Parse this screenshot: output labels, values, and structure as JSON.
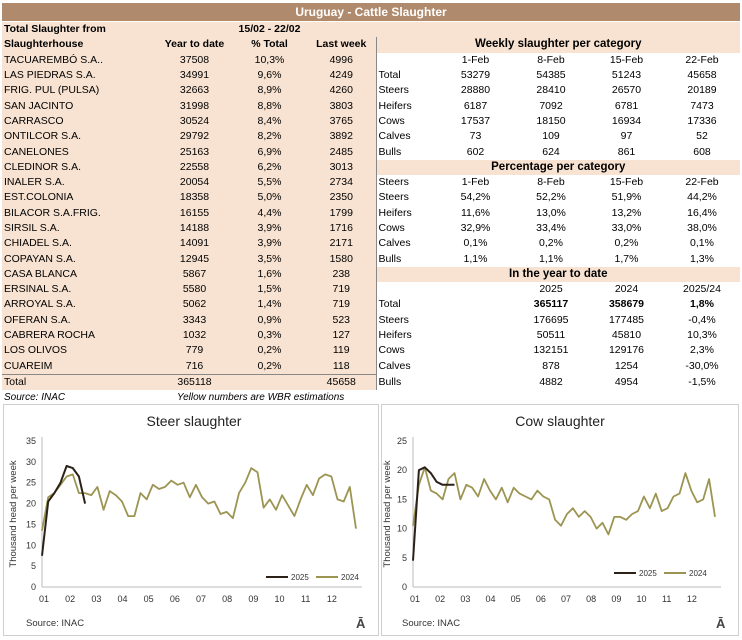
{
  "title": "Uruguay - Cattle Slaughter",
  "header": {
    "label": "Total Slaughter from",
    "period": "15/02 - 22/02"
  },
  "left_table": {
    "columns": [
      "Slaughterhouse",
      "Year to date",
      "% Total",
      "Last week"
    ],
    "rows": [
      [
        "TACUAREMBÓ S.A..",
        "37508",
        "10,3%",
        "4996"
      ],
      [
        "LAS PIEDRAS S.A.",
        "34991",
        "9,6%",
        "4249"
      ],
      [
        "FRIG. PUL (PULSA)",
        "32663",
        "8,9%",
        "4260"
      ],
      [
        "SAN JACINTO",
        "31998",
        "8,8%",
        "3803"
      ],
      [
        "CARRASCO",
        "30524",
        "8,4%",
        "3765"
      ],
      [
        "ONTILCOR S.A.",
        "29792",
        "8,2%",
        "3892"
      ],
      [
        "CANELONES",
        "25163",
        "6,9%",
        "2485"
      ],
      [
        "CLEDINOR S.A.",
        "22558",
        "6,2%",
        "3013"
      ],
      [
        "INALER S.A.",
        "20054",
        "5,5%",
        "2734"
      ],
      [
        "EST.COLONIA",
        "18358",
        "5,0%",
        "2350"
      ],
      [
        "BILACOR S.A.FRIG.",
        "16155",
        "4,4%",
        "1799"
      ],
      [
        "SIRSIL S.A.",
        "14188",
        "3,9%",
        "1716"
      ],
      [
        "CHIADEL S.A.",
        "14091",
        "3,9%",
        "2171"
      ],
      [
        "COPAYAN S.A.",
        "12945",
        "3,5%",
        "1580"
      ],
      [
        "CASA BLANCA",
        "5867",
        "1,6%",
        "238"
      ],
      [
        "ERSINAL S.A.",
        "5580",
        "1,5%",
        "719"
      ],
      [
        "ARROYAL S.A.",
        "5062",
        "1,4%",
        "719"
      ],
      [
        "OFERAN S.A.",
        "3343",
        "0,9%",
        "523"
      ],
      [
        "CABRERA ROCHA",
        "1032",
        "0,3%",
        "127"
      ],
      [
        "LOS OLIVOS",
        "779",
        "0,2%",
        "119"
      ],
      [
        "CUAREIM",
        "716",
        "0,2%",
        "118"
      ]
    ],
    "total": [
      "Total",
      "365118",
      "",
      "45658"
    ]
  },
  "source_note": "Source: INAC",
  "yellow_note": "Yellow numbers are WBR estimations",
  "weekly": {
    "title": "Weekly slaughter per category",
    "dates": [
      "1-Feb",
      "8-Feb",
      "15-Feb",
      "22-Feb"
    ],
    "rows": [
      [
        "Total",
        "53279",
        "54385",
        "51243",
        "45658"
      ],
      [
        "Steers",
        "28880",
        "28410",
        "26570",
        "20189"
      ],
      [
        "Heifers",
        "6187",
        "7092",
        "6781",
        "7473"
      ],
      [
        "Cows",
        "17537",
        "18150",
        "16934",
        "17336"
      ],
      [
        "Calves",
        "73",
        "109",
        "97",
        "52"
      ],
      [
        "Bulls",
        "602",
        "624",
        "861",
        "608"
      ]
    ]
  },
  "percentage": {
    "title": "Percentage per category",
    "header_label": "Steers",
    "dates": [
      "1-Feb",
      "8-Feb",
      "15-Feb",
      "22-Feb"
    ],
    "rows": [
      [
        "Steers",
        "54,2%",
        "52,2%",
        "51,9%",
        "44,2%"
      ],
      [
        "Heifers",
        "11,6%",
        "13,0%",
        "13,2%",
        "16,4%"
      ],
      [
        "Cows",
        "32,9%",
        "33,4%",
        "33,0%",
        "38,0%"
      ],
      [
        "Calves",
        "0,1%",
        "0,2%",
        "0,2%",
        "0,1%"
      ],
      [
        "Bulls",
        "1,1%",
        "1,1%",
        "1,7%",
        "1,3%"
      ]
    ]
  },
  "ytd": {
    "title": "In the year to date",
    "columns": [
      "2025",
      "2024",
      "2025/24"
    ],
    "rows": [
      [
        "Total",
        "365117",
        "358679",
        "1,8%"
      ],
      [
        "Steers",
        "176695",
        "177485",
        "-0,4%"
      ],
      [
        "Heifers",
        "50511",
        "45810",
        "10,3%"
      ],
      [
        "Cows",
        "132151",
        "129176",
        "2,3%"
      ],
      [
        "Calves",
        "878",
        "1254",
        "-30,0%"
      ],
      [
        "Bulls",
        "4882",
        "4954",
        "-1,5%"
      ]
    ]
  },
  "colors": {
    "title_bar": "#b08a6c",
    "tan": "#f8e3d2",
    "series_2025": "#2b2118",
    "series_2024": "#9c9552"
  },
  "chart_data": [
    {
      "type": "line",
      "title": "Steer slaughter",
      "xlabel": "",
      "ylabel": "Thousand head per week",
      "ylim": [
        0,
        35
      ],
      "yticks": [
        0,
        5,
        10,
        15,
        20,
        25,
        30,
        35
      ],
      "xticks": [
        "01",
        "02",
        "03",
        "04",
        "05",
        "06",
        "07",
        "08",
        "09",
        "10",
        "11",
        "12"
      ],
      "source": "Source: INAC",
      "logo": "Ā",
      "legend_position": "bottom-right",
      "series": [
        {
          "name": "2025",
          "x": [
            1,
            2,
            3,
            4,
            5,
            6,
            7,
            8
          ],
          "values": [
            7.5,
            20.5,
            22.5,
            25,
            29,
            28.5,
            26.5,
            20
          ]
        },
        {
          "name": "2024",
          "x": [
            1,
            2,
            3,
            4,
            5,
            6,
            7,
            8,
            9,
            10,
            11,
            12,
            13,
            14,
            15,
            16,
            17,
            18,
            19,
            20,
            21,
            22,
            23,
            24,
            25,
            26,
            27,
            28,
            29,
            30,
            31,
            32,
            33,
            34,
            35,
            36,
            37,
            38,
            39,
            40,
            41,
            42,
            43,
            44,
            45,
            46,
            47,
            48,
            49,
            50,
            51,
            52
          ],
          "values": [
            13.5,
            21.5,
            22.5,
            24.5,
            26.5,
            27,
            22.5,
            22.5,
            22,
            24,
            18.5,
            23,
            22,
            20.5,
            17,
            17,
            22.5,
            21,
            24.5,
            23.5,
            24,
            25.5,
            24.5,
            25,
            21.5,
            24.5,
            21.5,
            20,
            20.5,
            17.5,
            18,
            16.5,
            22.5,
            25,
            28.5,
            27.5,
            19,
            21,
            18.5,
            22,
            19.5,
            17,
            21,
            24.5,
            22,
            26,
            27,
            26.5,
            21,
            20.5,
            24,
            14
          ]
        }
      ]
    },
    {
      "type": "line",
      "title": "Cow slaughter",
      "xlabel": "",
      "ylabel": "Thousand head per week",
      "ylim": [
        0,
        25
      ],
      "yticks": [
        0,
        5,
        10,
        15,
        20,
        25
      ],
      "xticks": [
        "01",
        "02",
        "03",
        "04",
        "05",
        "06",
        "07",
        "08",
        "09",
        "10",
        "11",
        "12"
      ],
      "source": "Source: INAC",
      "logo": "Ā",
      "legend_position": "bottom-right",
      "series": [
        {
          "name": "2025",
          "x": [
            1,
            2,
            3,
            4,
            5,
            6,
            7,
            8
          ],
          "values": [
            4.5,
            20,
            20.5,
            19.5,
            18,
            17.5,
            17.5,
            17.5
          ]
        },
        {
          "name": "2024",
          "x": [
            1,
            2,
            3,
            4,
            5,
            6,
            7,
            8,
            9,
            10,
            11,
            12,
            13,
            14,
            15,
            16,
            17,
            18,
            19,
            20,
            21,
            22,
            23,
            24,
            25,
            26,
            27,
            28,
            29,
            30,
            31,
            32,
            33,
            34,
            35,
            36,
            37,
            38,
            39,
            40,
            41,
            42,
            43,
            44,
            45,
            46,
            47,
            48,
            49,
            50,
            51,
            52
          ],
          "values": [
            10.5,
            17.5,
            20.5,
            16.5,
            16,
            15,
            18.5,
            19.5,
            15,
            17.5,
            17,
            15.5,
            18.5,
            16.5,
            15,
            17,
            14.5,
            17,
            16,
            15.5,
            15,
            16.5,
            15.5,
            15,
            11.5,
            10.5,
            12.5,
            13.5,
            12,
            13,
            12,
            10,
            11,
            9,
            12,
            12,
            11.5,
            12.5,
            13,
            15.5,
            13.5,
            16,
            13,
            13.5,
            15.5,
            16,
            19.5,
            16.5,
            14.5,
            15,
            18.5,
            12
          ]
        }
      ]
    }
  ]
}
